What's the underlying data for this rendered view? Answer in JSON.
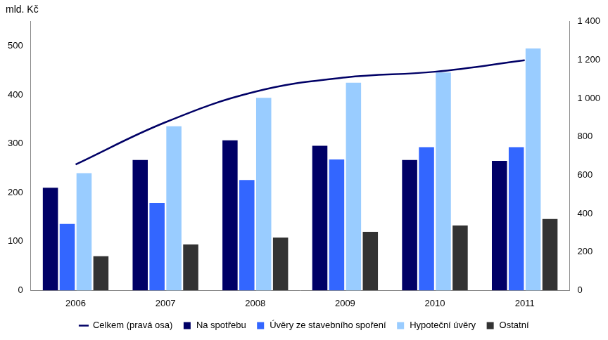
{
  "chart_data": {
    "type": "bar",
    "y_label": "mld. Kč",
    "categories": [
      "2006",
      "2007",
      "2008",
      "2009",
      "2010",
      "2011"
    ],
    "series": [
      {
        "name": "Na spotřebu",
        "color": "#000066",
        "values": [
          210,
          267,
          307,
          296,
          267,
          265
        ]
      },
      {
        "name": "Úvěry ze stavebního spoření",
        "color": "#3366ff",
        "values": [
          136,
          179,
          226,
          268,
          293,
          293
        ]
      },
      {
        "name": "Hypoteční úvěry",
        "color": "#99ccff",
        "values": [
          240,
          336,
          394,
          425,
          446,
          495
        ]
      },
      {
        "name": "Ostatní",
        "color": "#333333",
        "values": [
          70,
          94,
          108,
          120,
          133,
          146
        ]
      },
      {
        "name": "Celkem (pravá osa)",
        "color": "#000066",
        "type": "line",
        "axis": "y2",
        "values": [
          656,
          876,
          1035,
          1109,
          1139,
          1199
        ]
      }
    ],
    "ylim": [
      0,
      550
    ],
    "yticks": [
      0,
      100,
      200,
      300,
      400,
      500
    ],
    "y2lim": [
      0,
      1400
    ],
    "y2ticks": [
      0,
      200,
      400,
      600,
      800,
      {
        "value": 1000,
        "label": "1 000"
      },
      {
        "value": 1200,
        "label": "1 200"
      },
      {
        "value": 1400,
        "label": "1 400"
      }
    ],
    "grid": false,
    "legend": "bottom"
  }
}
